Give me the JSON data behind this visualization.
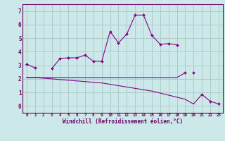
{
  "x": [
    0,
    1,
    2,
    3,
    4,
    5,
    6,
    7,
    8,
    9,
    10,
    11,
    12,
    13,
    14,
    15,
    16,
    17,
    18,
    19,
    20,
    21,
    22,
    23
  ],
  "line_main": [
    3.1,
    2.8,
    null,
    2.75,
    3.5,
    3.55,
    3.55,
    3.75,
    3.3,
    3.3,
    5.5,
    4.65,
    5.3,
    6.7,
    6.7,
    5.2,
    4.55,
    4.6,
    4.5,
    null,
    2.45,
    null,
    null,
    null
  ],
  "line_trend_upper": [
    2.1,
    2.1,
    2.1,
    2.1,
    2.1,
    2.1,
    2.1,
    2.1,
    2.1,
    2.1,
    2.1,
    2.1,
    2.1,
    2.1,
    2.1,
    2.1,
    2.1,
    2.1,
    2.1,
    2.45,
    null,
    null,
    null,
    null
  ],
  "line_trend_lower": [
    2.1,
    2.1,
    2.05,
    2.0,
    1.95,
    1.9,
    1.85,
    1.8,
    1.75,
    1.7,
    1.6,
    1.5,
    1.4,
    1.3,
    1.2,
    1.1,
    0.95,
    0.8,
    0.65,
    0.5,
    0.15,
    0.85,
    0.35,
    0.15
  ],
  "line_color": "#880088",
  "bg_color": "#cce8e8",
  "grid_color": "#aacccc",
  "axis_color": "#660066",
  "xlabel": "Windchill (Refroidissement éolien,°C)",
  "ylim": [
    -0.5,
    7.5
  ],
  "xlim": [
    -0.5,
    23.5
  ],
  "yticks": [
    0,
    1,
    2,
    3,
    4,
    5,
    6,
    7
  ],
  "xticks": [
    0,
    1,
    2,
    3,
    4,
    5,
    6,
    7,
    8,
    9,
    10,
    11,
    12,
    13,
    14,
    15,
    16,
    17,
    18,
    19,
    20,
    21,
    22,
    23
  ]
}
